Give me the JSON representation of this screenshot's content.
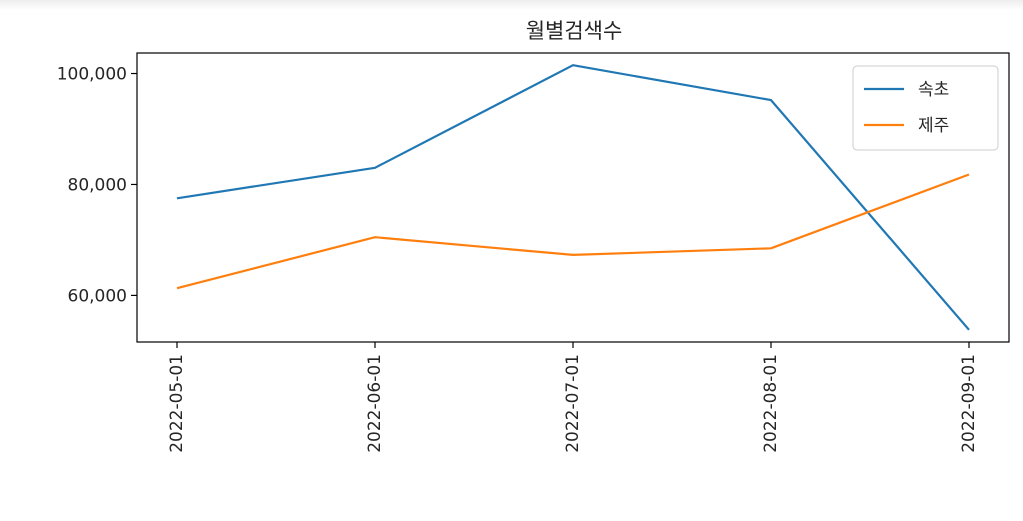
{
  "chart_data": {
    "type": "line",
    "title": "월별검색수",
    "xlabel": "",
    "ylabel": "",
    "categories": [
      "2022-05-01",
      "2022-06-01",
      "2022-07-01",
      "2022-08-01",
      "2022-09-01"
    ],
    "series": [
      {
        "name": "속초",
        "color": "#1f77b4",
        "values": [
          77500,
          83000,
          101500,
          95200,
          53800
        ]
      },
      {
        "name": "제주",
        "color": "#ff7f0e",
        "values": [
          61300,
          70500,
          67300,
          68500,
          81800
        ]
      }
    ],
    "yticks": [
      60000,
      80000,
      100000
    ],
    "ytick_labels": [
      "60,000",
      "80,000",
      "100,000"
    ],
    "ylim": [
      51600,
      103700
    ],
    "grid": false,
    "legend": "top-right"
  }
}
